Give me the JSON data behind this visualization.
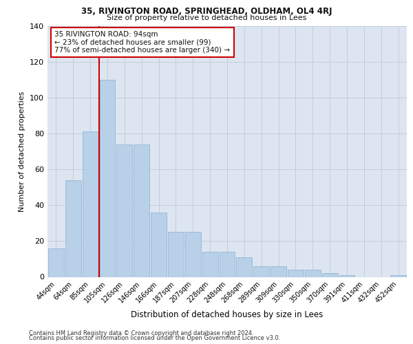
{
  "title_main": "35, RIVINGTON ROAD, SPRINGHEAD, OLDHAM, OL4 4RJ",
  "title_sub": "Size of property relative to detached houses in Lees",
  "xlabel": "Distribution of detached houses by size in Lees",
  "ylabel": "Number of detached properties",
  "categories": [
    "44sqm",
    "64sqm",
    "85sqm",
    "105sqm",
    "126sqm",
    "146sqm",
    "166sqm",
    "187sqm",
    "207sqm",
    "228sqm",
    "248sqm",
    "268sqm",
    "289sqm",
    "309sqm",
    "330sqm",
    "350sqm",
    "370sqm",
    "391sqm",
    "411sqm",
    "432sqm",
    "452sqm"
  ],
  "values": [
    16,
    54,
    81,
    110,
    74,
    74,
    36,
    25,
    25,
    14,
    14,
    11,
    6,
    6,
    4,
    4,
    2,
    1,
    0,
    0,
    1
  ],
  "bar_color": "#b8d0e8",
  "bar_edge_color": "#8ab0d0",
  "vline_x": 2.5,
  "vline_color": "#cc0000",
  "annotation_text": "35 RIVINGTON ROAD: 94sqm\n← 23% of detached houses are smaller (99)\n77% of semi-detached houses are larger (340) →",
  "annotation_box_color": "#ffffff",
  "annotation_box_edge": "#cc0000",
  "ylim": [
    0,
    140
  ],
  "yticks": [
    0,
    20,
    40,
    60,
    80,
    100,
    120,
    140
  ],
  "background_color": "#dde6f0",
  "footer_line1": "Contains HM Land Registry data © Crown copyright and database right 2024.",
  "footer_line2": "Contains public sector information licensed under the Open Government Licence v3.0."
}
